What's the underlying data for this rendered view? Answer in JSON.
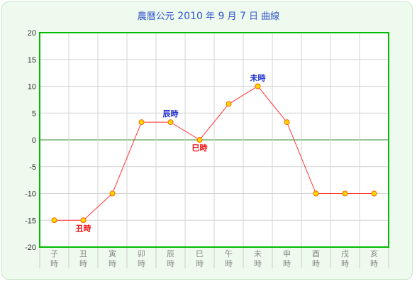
{
  "title": {
    "parts": [
      "農曆公元",
      "2010",
      "年",
      "9",
      "月",
      "7",
      "日",
      "曲線"
    ]
  },
  "colors": {
    "background": "#eefaee",
    "plot_background": "#ffffff",
    "plot_border": "#00bb00",
    "zero_line": "#2e8b2e",
    "grid": "#d3d3d3",
    "series_line": "#ff3333",
    "marker_fill": "#ffd700",
    "marker_stroke": "#ff6600",
    "title": "#3355cc",
    "label_blue": "#2233cc",
    "label_red": "#ee1111",
    "tick_text": "#333333",
    "x_tick_text": "#888888"
  },
  "chart_data": {
    "type": "line",
    "title": "農曆公元 2010 年 9 月 7 日 曲線",
    "xlabel": "",
    "ylabel": "",
    "ylim": [
      -20,
      20
    ],
    "yticks": [
      20,
      15,
      10,
      5,
      0,
      -5,
      -10,
      -15,
      -20
    ],
    "categories": [
      [
        "子",
        "時"
      ],
      [
        "丑",
        "時"
      ],
      [
        "寅",
        "時"
      ],
      [
        "卯",
        "時"
      ],
      [
        "辰",
        "時"
      ],
      [
        "巳",
        "時"
      ],
      [
        "午",
        "時"
      ],
      [
        "未",
        "時"
      ],
      [
        "申",
        "時"
      ],
      [
        "酉",
        "時"
      ],
      [
        "戌",
        "時"
      ],
      [
        "亥",
        "時"
      ]
    ],
    "series": [
      {
        "values": [
          -15,
          -15,
          -10,
          3.3,
          3.3,
          0,
          6.7,
          10,
          3.3,
          -10,
          -10,
          -10
        ]
      }
    ],
    "annotations": [
      {
        "index": 1,
        "text": "丑時",
        "position": "below",
        "color": "red"
      },
      {
        "index": 4,
        "text": "辰時",
        "position": "above",
        "color": "blue"
      },
      {
        "index": 5,
        "text": "巳時",
        "position": "below",
        "color": "red"
      },
      {
        "index": 7,
        "text": "未時",
        "position": "above",
        "color": "blue"
      }
    ],
    "grid": true,
    "legend": "none"
  }
}
